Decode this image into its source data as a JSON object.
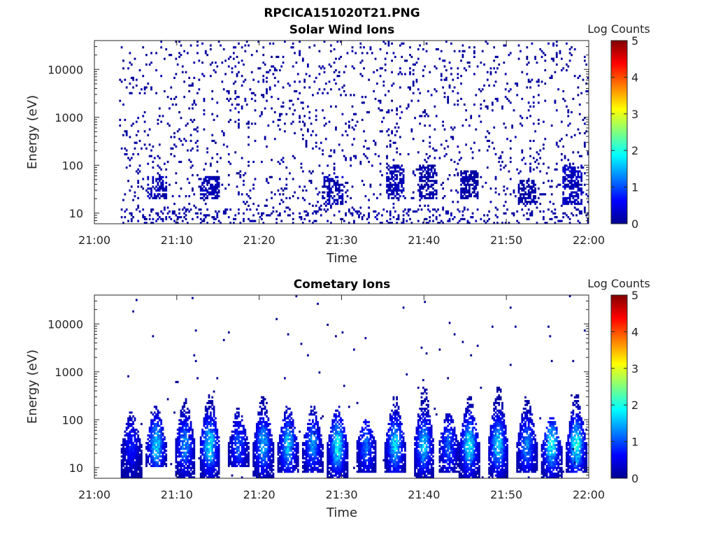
{
  "figure": {
    "title": "RPCICA151020T21.PNG"
  },
  "chart_data": [
    {
      "type": "heatmap",
      "title": "Solar Wind Ions",
      "xlabel": "Time",
      "ylabel": "Energy (eV)",
      "x_ticks": [
        "21:00",
        "21:10",
        "21:20",
        "21:30",
        "21:40",
        "21:50",
        "22:00"
      ],
      "y_ticks": [
        "10",
        "100",
        "1000",
        "10000"
      ],
      "y_scale": "log",
      "ylim": [
        6,
        40000
      ],
      "colorbar": {
        "label": "Log Counts",
        "ticks": [
          "0",
          "1",
          "2",
          "3",
          "4",
          "5"
        ],
        "range": [
          0,
          5
        ],
        "colormap": "jet"
      },
      "description_of_data": "Sparse low-count (~0-0.5 log counts) scattered points from ~21:03 to 22:00 across 6 eV - 30 keV, denser in bands near 20-40 eV at ~21:07, 21:14, 21:29, 21:36, 21:40, 21:46, 21:52, 21:58",
      "bursts": [
        {
          "time_min": 7.5,
          "emin": 20,
          "emax": 60,
          "level": 0.25
        },
        {
          "time_min": 14,
          "emin": 20,
          "emax": 60,
          "level": 0.25
        },
        {
          "time_min": 29,
          "emin": 15,
          "emax": 60,
          "level": 0.25
        },
        {
          "time_min": 36.5,
          "emin": 20,
          "emax": 100,
          "level": 0.25
        },
        {
          "time_min": 40.5,
          "emin": 20,
          "emax": 100,
          "level": 0.2
        },
        {
          "time_min": 45.5,
          "emin": 20,
          "emax": 80,
          "level": 0.2
        },
        {
          "time_min": 52.5,
          "emin": 15,
          "emax": 50,
          "level": 0.2
        },
        {
          "time_min": 58,
          "emin": 15,
          "emax": 100,
          "level": 0.3
        }
      ]
    },
    {
      "type": "heatmap",
      "title": "Cometary Ions",
      "xlabel": "Time",
      "ylabel": "Energy (eV)",
      "x_ticks": [
        "21:00",
        "21:10",
        "21:20",
        "21:30",
        "21:40",
        "21:50",
        "22:00"
      ],
      "y_ticks": [
        "10",
        "100",
        "1000",
        "10000"
      ],
      "y_scale": "log",
      "ylim": [
        6,
        40000
      ],
      "colorbar": {
        "label": "Log Counts",
        "ticks": [
          "0",
          "1",
          "2",
          "3",
          "4",
          "5"
        ],
        "range": [
          0,
          5
        ],
        "colormap": "jet"
      },
      "description_of_data": "Quasi-periodic vertical bursts every ~3-4 minutes from 21:05 to 22:00, extending from 6 eV up to ~200-600 eV, peak ~1.5-2 log counts near 20-40 eV",
      "bursts": [
        {
          "time_min": 4.5,
          "emin": 6,
          "emax": 150,
          "level": 0.6
        },
        {
          "time_min": 7.5,
          "emin": 10,
          "emax": 200,
          "level": 1.6
        },
        {
          "time_min": 11,
          "emin": 6,
          "emax": 300,
          "level": 1.2
        },
        {
          "time_min": 14,
          "emin": 6,
          "emax": 350,
          "level": 1.7
        },
        {
          "time_min": 17.5,
          "emin": 10,
          "emax": 180,
          "level": 0.9
        },
        {
          "time_min": 20.5,
          "emin": 6,
          "emax": 350,
          "level": 1.4
        },
        {
          "time_min": 23.5,
          "emin": 8,
          "emax": 200,
          "level": 1.5
        },
        {
          "time_min": 26.5,
          "emin": 8,
          "emax": 200,
          "level": 1.2
        },
        {
          "time_min": 29.5,
          "emin": 6,
          "emax": 200,
          "level": 1.8
        },
        {
          "time_min": 33,
          "emin": 8,
          "emax": 100,
          "level": 1.0
        },
        {
          "time_min": 36.5,
          "emin": 8,
          "emax": 300,
          "level": 1.6
        },
        {
          "time_min": 40,
          "emin": 6,
          "emax": 500,
          "level": 1.5
        },
        {
          "time_min": 43,
          "emin": 8,
          "emax": 150,
          "level": 1.0
        },
        {
          "time_min": 45.5,
          "emin": 6,
          "emax": 300,
          "level": 1.7
        },
        {
          "time_min": 49,
          "emin": 6,
          "emax": 500,
          "level": 1.6
        },
        {
          "time_min": 52.5,
          "emin": 8,
          "emax": 300,
          "level": 1.2
        },
        {
          "time_min": 55.5,
          "emin": 6,
          "emax": 120,
          "level": 1.8
        },
        {
          "time_min": 58.5,
          "emin": 8,
          "emax": 350,
          "level": 1.9
        }
      ]
    }
  ]
}
